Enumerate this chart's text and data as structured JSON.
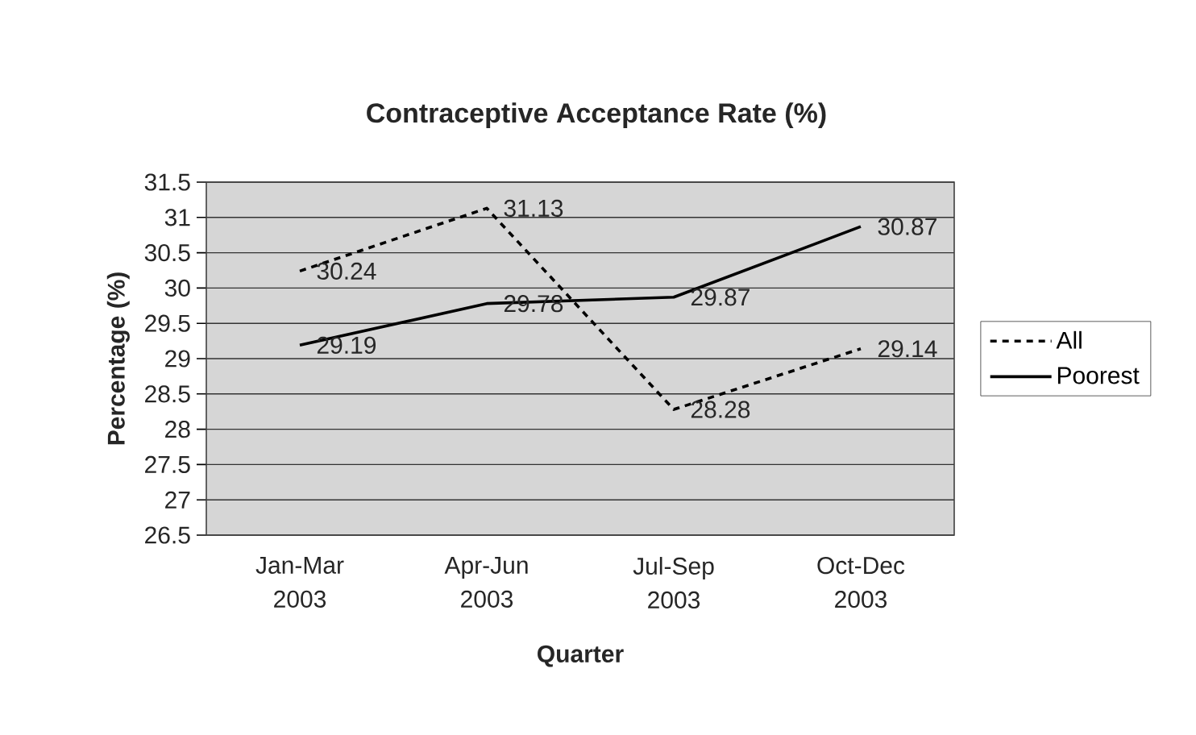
{
  "chart_data": {
    "type": "line",
    "title": "Contraceptive Acceptance Rate (%)",
    "xlabel": "Quarter",
    "ylabel": "Percentage (%)",
    "categories": [
      "Jan-Mar 2003",
      "Apr-Jun 2003",
      "Jul-Sep 2003",
      "Oct-Dec 2003"
    ],
    "series": [
      {
        "name": "All",
        "color": "#000000",
        "line_style": "dashed",
        "values": [
          30.24,
          31.13,
          28.28,
          29.14
        ]
      },
      {
        "name": "Poorest",
        "color": "#000000",
        "line_style": "solid",
        "values": [
          29.19,
          29.78,
          29.87,
          30.87
        ]
      }
    ],
    "ylim": [
      26.5,
      31.5
    ],
    "yticks": [
      26.5,
      27,
      27.5,
      28,
      28.5,
      29,
      29.5,
      30,
      30.5,
      31,
      31.5
    ],
    "grid": "y",
    "legend": "right",
    "data_labels": true
  }
}
